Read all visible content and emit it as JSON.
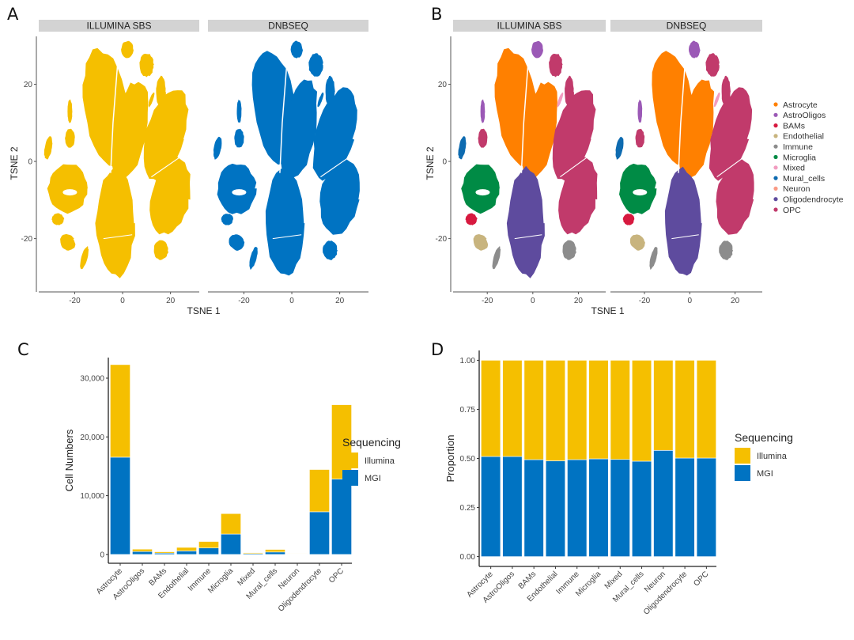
{
  "panels": {
    "A": {
      "letter": "A"
    },
    "B": {
      "letter": "B"
    },
    "C": {
      "letter": "C"
    },
    "D": {
      "letter": "D"
    }
  },
  "chart_data": [
    {
      "id": "A",
      "type": "scatter",
      "title": "",
      "facets": [
        "ILLUMINA SBS",
        "DNBSEQ"
      ],
      "facet_colors": {
        "ILLUMINA SBS": "#F5BF00",
        "DNBSEQ": "#0073C2"
      },
      "xlabel": "TSNE 1",
      "ylabel": "TSNE 2",
      "xlim": [
        -35,
        32
      ],
      "ylim": [
        -33,
        32
      ],
      "xticks": [
        -20,
        0,
        20
      ],
      "yticks": [
        -20,
        0,
        20
      ],
      "xtick_labels": [
        "-20",
        "0",
        "20"
      ],
      "ytick_labels": [
        "-20",
        "0",
        "20"
      ],
      "grid": false,
      "legend": "none"
    },
    {
      "id": "B",
      "type": "scatter",
      "title": "",
      "facets": [
        "ILLUMINA SBS",
        "DNBSEQ"
      ],
      "xlabel": "TSNE 1",
      "ylabel": "TSNE 2",
      "xlim": [
        -35,
        32
      ],
      "ylim": [
        -33,
        32
      ],
      "xticks": [
        -20,
        0,
        20
      ],
      "yticks": [
        -20,
        0,
        20
      ],
      "xtick_labels": [
        "-20",
        "0",
        "20"
      ],
      "ytick_labels": [
        "-20",
        "0",
        "20"
      ],
      "grid": false,
      "legend": "right",
      "legend_entries": [
        {
          "label": "Astrocyte",
          "color": "#FF8000"
        },
        {
          "label": "AstroOligos",
          "color": "#9B59B6"
        },
        {
          "label": "BAMs",
          "color": "#D7193F"
        },
        {
          "label": "Endothelial",
          "color": "#C8B47E"
        },
        {
          "label": "Immune",
          "color": "#8C8C8C"
        },
        {
          "label": "Microglia",
          "color": "#008B45"
        },
        {
          "label": "Mixed",
          "color": "#F29CC0"
        },
        {
          "label": "Mural_cells",
          "color": "#0E6BB0"
        },
        {
          "label": "Neuron",
          "color": "#FA9A85"
        },
        {
          "label": "Oligodendrocyte",
          "color": "#5E4B9E"
        },
        {
          "label": "OPC",
          "color": "#C13A6B"
        }
      ],
      "clusters": [
        {
          "cell_type": "Astrocyte",
          "cx": -7,
          "cy": 14,
          "rx": 9,
          "ry": 15,
          "rot": -8
        },
        {
          "cell_type": "Astrocyte",
          "cx": 3,
          "cy": 8,
          "rx": 7,
          "ry": 13,
          "rot": 10
        },
        {
          "cell_type": "OPC",
          "cx": 18,
          "cy": 7,
          "rx": 8,
          "ry": 12,
          "rot": 15
        },
        {
          "cell_type": "OPC",
          "cx": 20,
          "cy": -9,
          "rx": 8,
          "ry": 10,
          "rot": 10
        },
        {
          "cell_type": "OPC",
          "cx": 10,
          "cy": 25,
          "rx": 3,
          "ry": 3,
          "rot": 0
        },
        {
          "cell_type": "OPC",
          "cx": 16,
          "cy": 18,
          "rx": 2,
          "ry": 4,
          "rot": 0
        },
        {
          "cell_type": "OPC",
          "cx": -22,
          "cy": 6,
          "rx": 2,
          "ry": 2.5,
          "rot": 0
        },
        {
          "cell_type": "Oligodendrocyte",
          "cx": -3,
          "cy": -16,
          "rx": 8,
          "ry": 14,
          "rot": 0
        },
        {
          "cell_type": "Microglia",
          "cx": -23,
          "cy": -7,
          "rx": 8,
          "ry": 6.5,
          "rot": 0
        },
        {
          "cell_type": "AstroOligos",
          "cx": 2,
          "cy": 29,
          "rx": 2.5,
          "ry": 2.2,
          "rot": 0
        },
        {
          "cell_type": "AstroOligos",
          "cx": -22,
          "cy": 13,
          "rx": 1,
          "ry": 3,
          "rot": 0
        },
        {
          "cell_type": "Mural_cells",
          "cx": -31,
          "cy": 3.5,
          "rx": 1.5,
          "ry": 3,
          "rot": 10
        },
        {
          "cell_type": "BAMs",
          "cx": -27,
          "cy": -15,
          "rx": 2.5,
          "ry": 1.5,
          "rot": 0
        },
        {
          "cell_type": "Endothelial",
          "cx": -23,
          "cy": -21,
          "rx": 3,
          "ry": 2.2,
          "rot": -30
        },
        {
          "cell_type": "Immune",
          "cx": -16,
          "cy": -25,
          "rx": 1.3,
          "ry": 3,
          "rot": 15
        },
        {
          "cell_type": "Immune",
          "cx": 16,
          "cy": -23,
          "rx": 3,
          "ry": 2.5,
          "rot": 0
        },
        {
          "cell_type": "Mixed",
          "cx": 12,
          "cy": 16,
          "rx": 0.7,
          "ry": 2,
          "rot": 20
        }
      ]
    },
    {
      "id": "C",
      "type": "bar",
      "stacked": true,
      "title": "",
      "categories": [
        "Astrocyte",
        "AstroOligos",
        "BAMs",
        "Endothelial",
        "Immune",
        "Microglia",
        "Mixed",
        "Mural_cells",
        "Neuron",
        "Oligodendrocyte",
        "OPC"
      ],
      "series": [
        {
          "name": "MGI",
          "color": "#0073C2",
          "values": [
            16550,
            500,
            220,
            600,
            1100,
            3470,
            150,
            410,
            70,
            7260,
            12830
          ]
        },
        {
          "name": "Illumina",
          "color": "#F5BF00",
          "values": [
            15750,
            400,
            230,
            600,
            1100,
            3480,
            150,
            440,
            60,
            7190,
            12650
          ]
        }
      ],
      "xlabel": "",
      "ylabel": "Cell Numbers",
      "ylim": [
        -1500,
        33500
      ],
      "yticks": [
        0,
        10000,
        20000,
        30000
      ],
      "ytick_labels": [
        "0",
        "10,000",
        "20,000",
        "30,000"
      ],
      "legend_title": "Sequencing",
      "legend_entries": [
        "Illumina",
        "MGI"
      ],
      "legend": "right",
      "grid": false
    },
    {
      "id": "D",
      "type": "bar",
      "stacked": true,
      "title": "",
      "categories": [
        "Astrocyte",
        "AstroOligos",
        "BAMs",
        "Endothelial",
        "Immune",
        "Microglia",
        "Mixed",
        "Mural_cells",
        "Neuron",
        "Oligodendrocyte",
        "OPC"
      ],
      "series": [
        {
          "name": "MGI",
          "color": "#0073C2",
          "values": [
            0.51,
            0.51,
            0.494,
            0.488,
            0.494,
            0.498,
            0.495,
            0.486,
            0.541,
            0.502,
            0.502
          ]
        },
        {
          "name": "Illumina",
          "color": "#F5BF00",
          "values": [
            0.49,
            0.49,
            0.506,
            0.512,
            0.506,
            0.502,
            0.505,
            0.514,
            0.459,
            0.498,
            0.498
          ]
        }
      ],
      "xlabel": "",
      "ylabel": "Proportion",
      "ylim": [
        -0.05,
        1.05
      ],
      "yticks": [
        0,
        0.25,
        0.5,
        0.75,
        1.0
      ],
      "ytick_labels": [
        "0.00",
        "0.25",
        "0.50",
        "0.75",
        "1.00"
      ],
      "legend_title": "Sequencing",
      "legend_entries": [
        "Illumina",
        "MGI"
      ],
      "legend": "right",
      "grid": false
    }
  ]
}
